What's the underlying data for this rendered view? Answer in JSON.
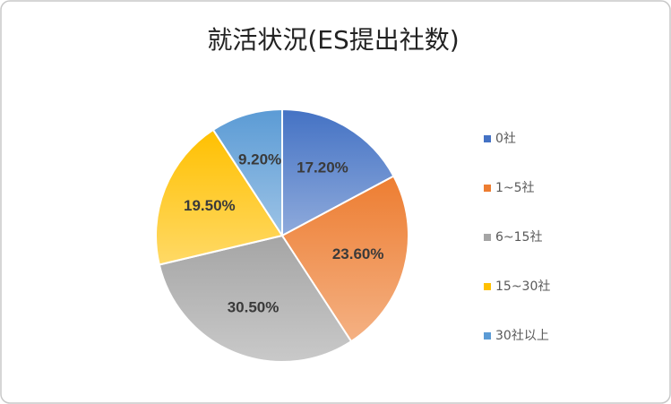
{
  "chart_data": {
    "type": "pie",
    "title": "就活状況(ES提出社数)",
    "categories": [
      "0社",
      "1~5社",
      "6~15社",
      "15~30社",
      "30社以上"
    ],
    "values": [
      17.2,
      23.6,
      30.5,
      19.5,
      9.2
    ],
    "value_labels": [
      "17.20%",
      "23.60%",
      "30.50%",
      "19.50%",
      "9.20%"
    ],
    "colors": [
      "#4472c4",
      "#ed7d31",
      "#a5a5a5",
      "#ffc000",
      "#5b9bd5"
    ],
    "legend": "right"
  }
}
